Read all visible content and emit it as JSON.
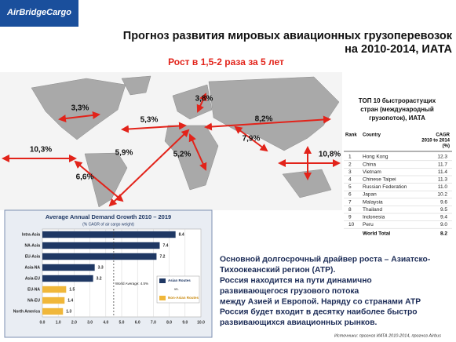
{
  "header": {
    "logo": "AirBridgeCargo",
    "title_lines": [
      "Прогноз развития мировых авиационных грузоперевозок",
      "на 2010-2014, ИАТА"
    ],
    "subtitle": "Рост в 1,5-2 раза за 5 лет"
  },
  "map": {
    "labels": [
      "3,3%",
      "5,3%",
      "3,8%",
      "8,2%",
      "10,3%",
      "5,9%",
      "5,2%",
      "7,9%",
      "10,8%",
      "6,6%"
    ]
  },
  "table": {
    "title_lines": [
      "ТОП 10 быстрорастущих",
      "стран (международный",
      "грузопоток), ИАТА"
    ],
    "header": [
      "Rank",
      "Country"
    ],
    "header_cagr": [
      "CAGR",
      "2010 to 2014",
      "(%)"
    ],
    "rows": [
      [
        1,
        "Hong Kong",
        "12.3"
      ],
      [
        2,
        "China",
        "11.7"
      ],
      [
        3,
        "Vietnam",
        "11.4"
      ],
      [
        4,
        "Chinese Taipei",
        "11.3"
      ],
      [
        5,
        "Russian Federation",
        "11.0"
      ],
      [
        6,
        "Japan",
        "10.2"
      ],
      [
        7,
        "Malaysia",
        "9.6"
      ],
      [
        8,
        "Thailand",
        "9.5"
      ],
      [
        9,
        "Indonesia",
        "9.4"
      ],
      [
        10,
        "Peru",
        "9.0"
      ]
    ],
    "total": [
      "World Total",
      "8.2"
    ]
  },
  "chart_data": {
    "type": "bar",
    "orientation": "horizontal",
    "title": "Average Annual Demand Growth 2010 – 2019",
    "subtitle": "(% CAGR of air cargo weight)",
    "categories": [
      "Intra-Asia",
      "NA-Asia",
      "EU-Asia",
      "Asia-NA",
      "Asia-EU",
      "EU-NA",
      "NA-EU",
      "North America"
    ],
    "series": [
      {
        "name": "Asian Routes",
        "color": "#1f3864",
        "values": [
          8.4,
          7.4,
          7.2,
          3.3,
          3.2,
          null,
          null,
          null
        ]
      },
      {
        "name": "Non-Asian Routes",
        "color": "#f0b73a",
        "values": [
          null,
          null,
          null,
          null,
          null,
          1.5,
          1.4,
          1.3
        ]
      }
    ],
    "legend_between": "vs.",
    "reference": {
      "value": 4.5,
      "label": "World Average: 4.5%"
    },
    "xlim": [
      0,
      10
    ],
    "xticks": [
      {
        "value": 0,
        "label": "0.0"
      },
      {
        "value": 1,
        "label": "1.0"
      },
      {
        "value": 2,
        "label": "2.0"
      },
      {
        "value": 3,
        "label": "3.0"
      },
      {
        "value": 4,
        "label": "4.0"
      },
      {
        "value": 5,
        "label": "5.0"
      },
      {
        "value": 6,
        "label": "6.0"
      },
      {
        "value": 7,
        "label": "7.0"
      },
      {
        "value": 8,
        "label": "8.0"
      },
      {
        "value": 9,
        "label": "9.0"
      },
      {
        "value": 10,
        "label": "10.0"
      }
    ],
    "grid": true
  },
  "body": {
    "lines": [
      "Основной долгосрочный драйвер роста – Азиатско-",
      "Тихоокеанский регион (АТР).",
      "Россия находится на пути динамично",
      "развивающегося грузового потока",
      "между Азией и Европой. Наряду со странами АТР",
      "Россия будет входит в десятку наиболее быстро",
      "развивающихся авиационных рынков."
    ]
  },
  "source": "Источники: прогноз ИАТА 2010-2014, прогноз Airbus"
}
